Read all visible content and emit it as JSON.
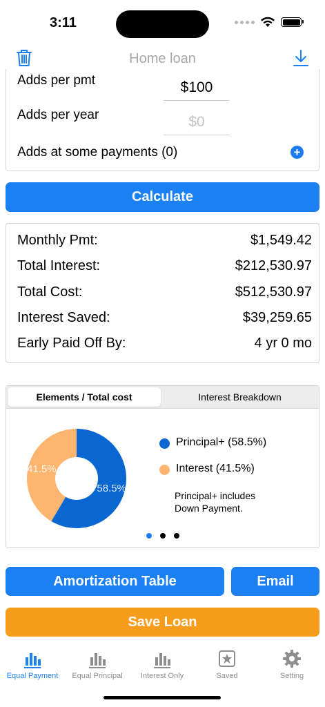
{
  "status": {
    "time": "3:11"
  },
  "nav": {
    "title": "Home loan",
    "trash_icon": "trash-icon",
    "download_icon": "download-icon"
  },
  "adds": {
    "per_pmt_label": "Adds per pmt",
    "per_pmt_value": "$100",
    "per_year_label": "Adds per year",
    "per_year_placeholder": "$0",
    "some_payments_label": "Adds at some payments (0)",
    "add_icon": "plus-circle-icon"
  },
  "calculate_label": "Calculate",
  "results": [
    {
      "label": "Monthly Pmt:",
      "value": "$1,549.42"
    },
    {
      "label": "Total Interest:",
      "value": "$212,530.97"
    },
    {
      "label": "Total Cost:",
      "value": "$512,530.97"
    },
    {
      "label": "Interest Saved:",
      "value": "$39,259.65"
    },
    {
      "label": "Early Paid Off By:",
      "value": "4 yr 0 mo"
    }
  ],
  "chart_tabs": {
    "active": "Elements / Total cost",
    "inactive": "Interest Breakdown"
  },
  "chart_data": {
    "type": "pie",
    "donut": true,
    "slices": [
      {
        "name": "Principal+",
        "percent": 58.5,
        "label": "58.5%",
        "color": "#0a66d0"
      },
      {
        "name": "Interest",
        "percent": 41.5,
        "label": "41.5%",
        "color": "#fdb56f"
      }
    ],
    "legend": [
      {
        "text": "Principal+ (58.5%)",
        "color": "#0a66d0"
      },
      {
        "text": "Interest (41.5%)",
        "color": "#fdb56f"
      }
    ],
    "note": "Principal+ includes Down Payment."
  },
  "pager": {
    "count": 3,
    "active_index": 0
  },
  "buttons": {
    "amortization": "Amortization Table",
    "email": "Email",
    "save": "Save Loan"
  },
  "tabs": [
    {
      "label": "Equal Payment",
      "icon": "bar-chart-icon",
      "active": true
    },
    {
      "label": "Equal Principal",
      "icon": "bar-chart-icon",
      "active": false
    },
    {
      "label": "Interest Only",
      "icon": "bar-chart-icon",
      "active": false
    },
    {
      "label": "Saved",
      "icon": "star-square-icon",
      "active": false
    },
    {
      "label": "Setting",
      "icon": "gear-icon",
      "active": false
    }
  ],
  "colors": {
    "accent": "#1b80f2",
    "save": "#f89d1b",
    "principal": "#0a66d0",
    "interest": "#fdb56f"
  }
}
